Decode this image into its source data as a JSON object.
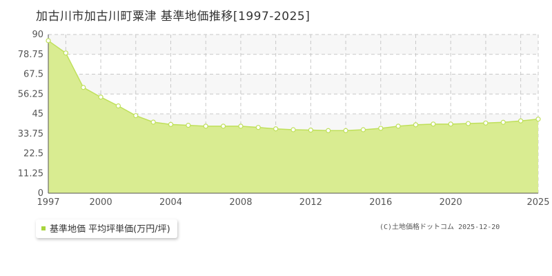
{
  "page": {
    "title": "加古川市加古川町粟津 基準地価推移[1997-2025]"
  },
  "legend": {
    "label": "基準地価 平均坪単価(万円/坪)"
  },
  "copyright": "(C)土地価格ドットコム 2025-12-20",
  "colors": {
    "fill": "#d9ec91",
    "line": "#bfe05a",
    "band": "#f7f7f7",
    "grid": "#c8c8c8",
    "legend_swatch": "#a8d43c"
  },
  "chart_data": {
    "type": "area",
    "series": [
      {
        "name": "基準地価 平均坪単価(万円/坪)",
        "x": [
          1997,
          1998,
          1999,
          2000,
          2001,
          2002,
          2003,
          2004,
          2005,
          2006,
          2007,
          2008,
          2009,
          2010,
          2011,
          2012,
          2013,
          2014,
          2015,
          2016,
          2017,
          2018,
          2019,
          2020,
          2021,
          2022,
          2023,
          2024,
          2025
        ],
        "values": [
          86.5,
          79.5,
          60.0,
          54.5,
          49.5,
          44.0,
          40.3,
          39.0,
          38.5,
          38.0,
          38.0,
          38.0,
          37.3,
          36.5,
          36.0,
          35.8,
          35.5,
          35.5,
          36.0,
          36.8,
          38.0,
          38.8,
          39.2,
          39.2,
          39.5,
          39.8,
          40.2,
          41.0,
          42.0
        ]
      }
    ],
    "xlim": [
      1997,
      2025
    ],
    "ylim": [
      0,
      90
    ],
    "x_ticks": [
      "1997",
      "2000",
      "2004",
      "2008",
      "2012",
      "2016",
      "2020",
      "2025"
    ],
    "y_ticks": [
      "0",
      "11.25",
      "22.5",
      "33.75",
      "45",
      "56.25",
      "67.5",
      "78.75",
      "90"
    ],
    "grid": true
  }
}
